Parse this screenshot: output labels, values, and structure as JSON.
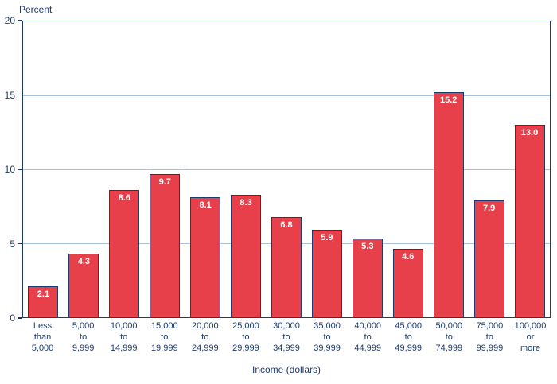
{
  "chart_data": {
    "type": "bar",
    "title": "",
    "ylabel": "Percent",
    "xlabel": "Income (dollars)",
    "ylim": [
      0,
      20
    ],
    "yticks": [
      0,
      5,
      10,
      15,
      20
    ],
    "gridlines": [
      5,
      10,
      15
    ],
    "grid": true,
    "legend": "none",
    "categories": [
      "Less than 5,000",
      "5,000 to 9,999",
      "10,000 to 14,999",
      "15,000 to 19,999",
      "20,000 to 24,999",
      "25,000 to 29,999",
      "30,000 to 34,999",
      "35,000 to 39,999",
      "40,000 to 44,999",
      "45,000 to 49,999",
      "50,000 to 74,999",
      "75,000 to 99,999",
      "100,000 or more"
    ],
    "tick_labels": [
      "Less\nthan\n5,000",
      "5,000\nto\n9,999",
      "10,000\nto\n14,999",
      "15,000\nto\n19,999",
      "20,000\nto\n24,999",
      "25,000\nto\n29,999",
      "30,000\nto\n34,999",
      "35,000\nto\n39,999",
      "40,000\nto\n44,999",
      "45,000\nto\n49,999",
      "50,000\nto\n74,999",
      "75,000\nto\n99,999",
      "100,000\nor\nmore"
    ],
    "values": [
      2.1,
      4.3,
      8.6,
      9.7,
      8.1,
      8.3,
      6.8,
      5.9,
      5.3,
      4.6,
      15.2,
      7.9,
      13.0
    ],
    "value_labels": [
      "2.1",
      "4.3",
      "8.6",
      "9.7",
      "8.1",
      "8.3",
      "6.8",
      "5.9",
      "5.3",
      "4.6",
      "15.2",
      "7.9",
      "13.0"
    ],
    "colors": {
      "bar": "#E8404B",
      "bar_border": "#1E3A6E",
      "text": "#1E3A6E",
      "grid": "#A9C4E0",
      "value_label": "#FFFFFF"
    }
  }
}
